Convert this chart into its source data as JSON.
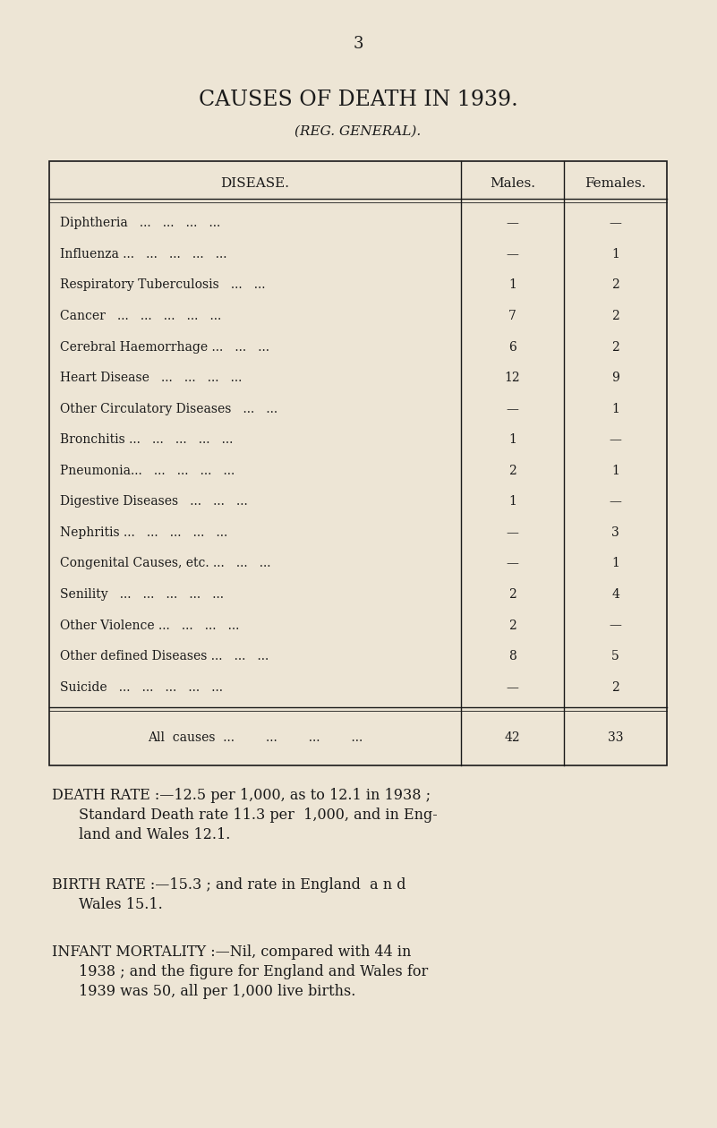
{
  "page_number": "3",
  "title": "CAUSES OF DEATH IN 1939.",
  "subtitle": "(REG. GENERAL).",
  "bg_color": "#ede5d5",
  "text_color": "#1a1a1a",
  "col_headers": [
    "DISEASE.",
    "Males.",
    "Females."
  ],
  "rows": [
    [
      "Diphtheria",
      "...",
      "...",
      "...",
      "...",
      "—",
      "—"
    ],
    [
      "Influenza ...",
      "...",
      "...",
      "...",
      "...",
      "—",
      "1"
    ],
    [
      "Respiratory Tuberculosis",
      "...",
      "...",
      "1",
      "2"
    ],
    [
      "Cancer",
      "...",
      "...",
      "...",
      "...",
      "...",
      "7",
      "2"
    ],
    [
      "Cerebral Haemorrhage ...",
      "...",
      "...",
      "...",
      "6",
      "2"
    ],
    [
      "Heart Disease",
      "...",
      "...",
      "...",
      "...",
      "12",
      "9"
    ],
    [
      "Other Circulatory Diseases",
      "...",
      "...",
      "—",
      "1"
    ],
    [
      "Bronchitis ...",
      "...",
      "...",
      "...",
      "...",
      "1",
      "—"
    ],
    [
      "Pneumonia...",
      "...",
      "...",
      "...",
      "...",
      "2",
      "1"
    ],
    [
      "Digestive Diseases",
      "...",
      "...",
      "...",
      "1",
      "—"
    ],
    [
      "Nephritis ...",
      "...",
      "...",
      "...",
      "...",
      "—",
      "3"
    ],
    [
      "Congenital Causes, etc. ...",
      "...",
      "...",
      "—",
      "1"
    ],
    [
      "Senility",
      "...",
      "...",
      "...",
      "...",
      "...",
      "2",
      "4"
    ],
    [
      "Other Violence ...",
      "...",
      "...",
      "...",
      "2",
      "—"
    ],
    [
      "Other defined Diseases ...",
      "...",
      "...",
      "8",
      "5"
    ],
    [
      "Suicide",
      "...",
      "...",
      "...",
      "...",
      "...",
      "—",
      "2"
    ]
  ],
  "row_display": [
    [
      "Diphtheria   ...   ...   ...   ...",
      "—",
      "—"
    ],
    [
      "Influenza ...   ...   ...   ...   ...",
      "—",
      "1"
    ],
    [
      "Respiratory Tuberculosis   ...   ...",
      "1",
      "2"
    ],
    [
      "Cancer   ...   ...   ...   ...   ...",
      "7",
      "2"
    ],
    [
      "Cerebral Haemorrhage ...   ...   ...",
      "6",
      "2"
    ],
    [
      "Heart Disease   ...   ...   ...   ...",
      "12",
      "9"
    ],
    [
      "Other Circulatory Diseases   ...   ...",
      "—",
      "1"
    ],
    [
      "Bronchitis ...   ...   ...   ...   ...",
      "1",
      "—"
    ],
    [
      "Pneumonia...   ...   ...   ...   ...",
      "2",
      "1"
    ],
    [
      "Digestive Diseases   ...   ...   ...",
      "1",
      "—"
    ],
    [
      "Nephritis ...   ...   ...   ...   ...",
      "—",
      "3"
    ],
    [
      "Congenital Causes, etc. ...   ...   ...",
      "—",
      "1"
    ],
    [
      "Senility   ...   ...   ...   ...   ...",
      "2",
      "4"
    ],
    [
      "Other Violence ...   ...   ...   ...",
      "2",
      "—"
    ],
    [
      "Other defined Diseases ...   ...   ...",
      "8",
      "5"
    ],
    [
      "Suicide   ...   ...   ...   ...   ...",
      "—",
      "2"
    ]
  ],
  "total_row": [
    "All  causes  ...        ...        ...        ...",
    "42",
    "33"
  ],
  "fn1_line1": "DEATH RATE :—12.5 per 1,000, as to 12.1 in 1938 ;",
  "fn1_line2": "Standard Death rate 11.3 per  1,000, and in Eng-",
  "fn1_line3": "land and Wales 12.1.",
  "fn2_line1": "BIRTH RATE :—15.3 ; and rate in England  a n d",
  "fn2_line2": "Wales 15.1.",
  "fn3_line1": "INFANT MORTALITY :—Nil, compared with 44 in",
  "fn3_line2": "1938 ; and the figure for England and Wales for",
  "fn3_line3": "1939 was 50, all per 1,000 live births."
}
